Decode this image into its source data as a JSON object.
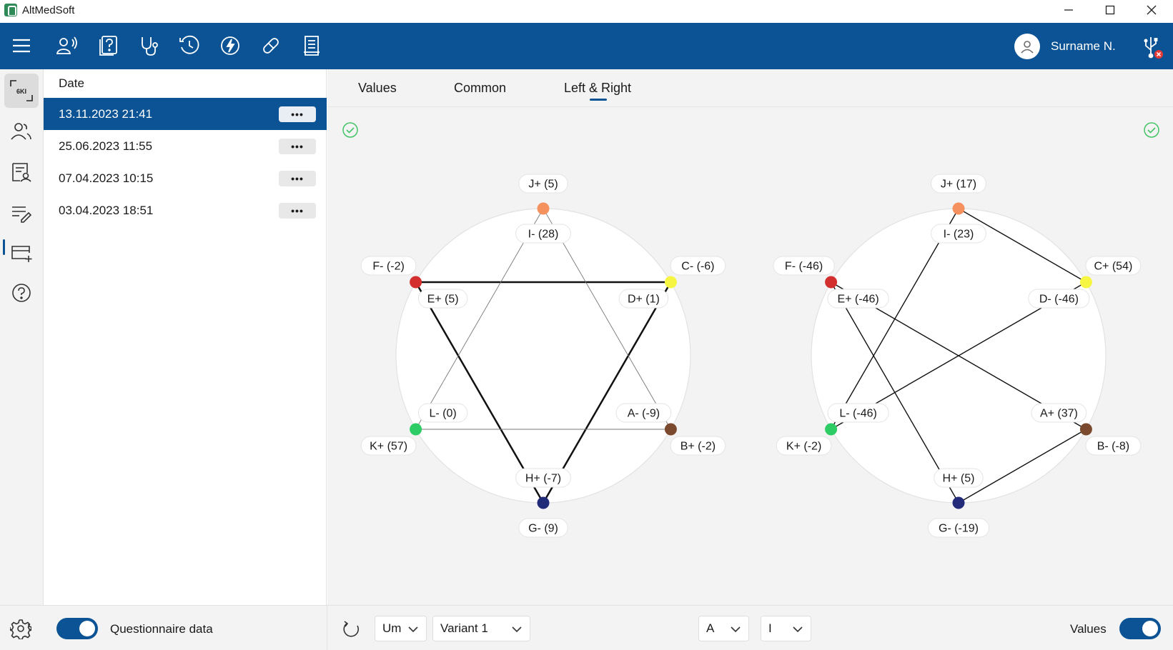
{
  "app": {
    "title": "AltMedSoft"
  },
  "toolbar": {
    "icons": [
      "menu-icon",
      "patient-voice-icon",
      "questionnaire-icon",
      "stethoscope-icon",
      "history-icon",
      "energy-icon",
      "pill-icon",
      "report-icon"
    ],
    "active": "energy-icon",
    "user": "Surname N."
  },
  "leftnav": {
    "items": [
      "6ki-icon",
      "patients-icon",
      "records-icon",
      "notes-icon",
      "card-add-icon",
      "help-icon"
    ],
    "badge_text": "6KI"
  },
  "dates": {
    "header": "Date",
    "rows": [
      {
        "label": "13.11.2023 21:41",
        "selected": true,
        "more": "•••"
      },
      {
        "label": "25.06.2023 11:55",
        "selected": false,
        "more": "•••"
      },
      {
        "label": "07.04.2023 10:15",
        "selected": false,
        "more": "•••"
      },
      {
        "label": "03.04.2023 18:51",
        "selected": false,
        "more": "•••"
      }
    ]
  },
  "tabs": [
    {
      "label": "Values",
      "active": false
    },
    {
      "label": "Common",
      "active": false
    },
    {
      "label": "Left & Right",
      "active": true
    }
  ],
  "charts": [
    {
      "nodes": {
        "J": {
          "outer": "J+ (5)",
          "inner": "I- (28)",
          "color": "#f5915f"
        },
        "C": {
          "outer": "C- (-6)",
          "inner": "D+ (1)",
          "color": "#f5f542"
        },
        "B": {
          "outer": "B+ (-2)",
          "inner": "A- (-9)",
          "color": "#7b4a2e"
        },
        "G": {
          "outer": "G- (9)",
          "inner": "H+ (-7)",
          "color": "#222a7a"
        },
        "K": {
          "outer": "K+ (57)",
          "inner": "L- (0)",
          "color": "#2ecc64"
        },
        "F": {
          "outer": "F- (-2)",
          "inner": "E+ (5)",
          "color": "#d32f2f"
        }
      }
    },
    {
      "nodes": {
        "J": {
          "outer": "J+ (17)",
          "inner": "I- (23)",
          "color": "#f5915f"
        },
        "C": {
          "outer": "C+ (54)",
          "inner": "D- (-46)",
          "color": "#f5f542"
        },
        "B": {
          "outer": "B- (-8)",
          "inner": "A+ (37)",
          "color": "#7b4a2e"
        },
        "G": {
          "outer": "G- (-19)",
          "inner": "H+ (5)",
          "color": "#222a7a"
        },
        "K": {
          "outer": "K+ (-2)",
          "inner": "L- (-46)",
          "color": "#2ecc64"
        },
        "F": {
          "outer": "F- (-46)",
          "inner": "E+ (-46)",
          "color": "#d32f2f"
        }
      }
    }
  ],
  "bottom": {
    "questionnaire_label": "Questionnaire data",
    "questionnaire_on": true,
    "select_um": "Um",
    "select_variant": "Variant 1",
    "select_a": "A",
    "select_i": "I",
    "values_label": "Values",
    "values_on": true
  }
}
